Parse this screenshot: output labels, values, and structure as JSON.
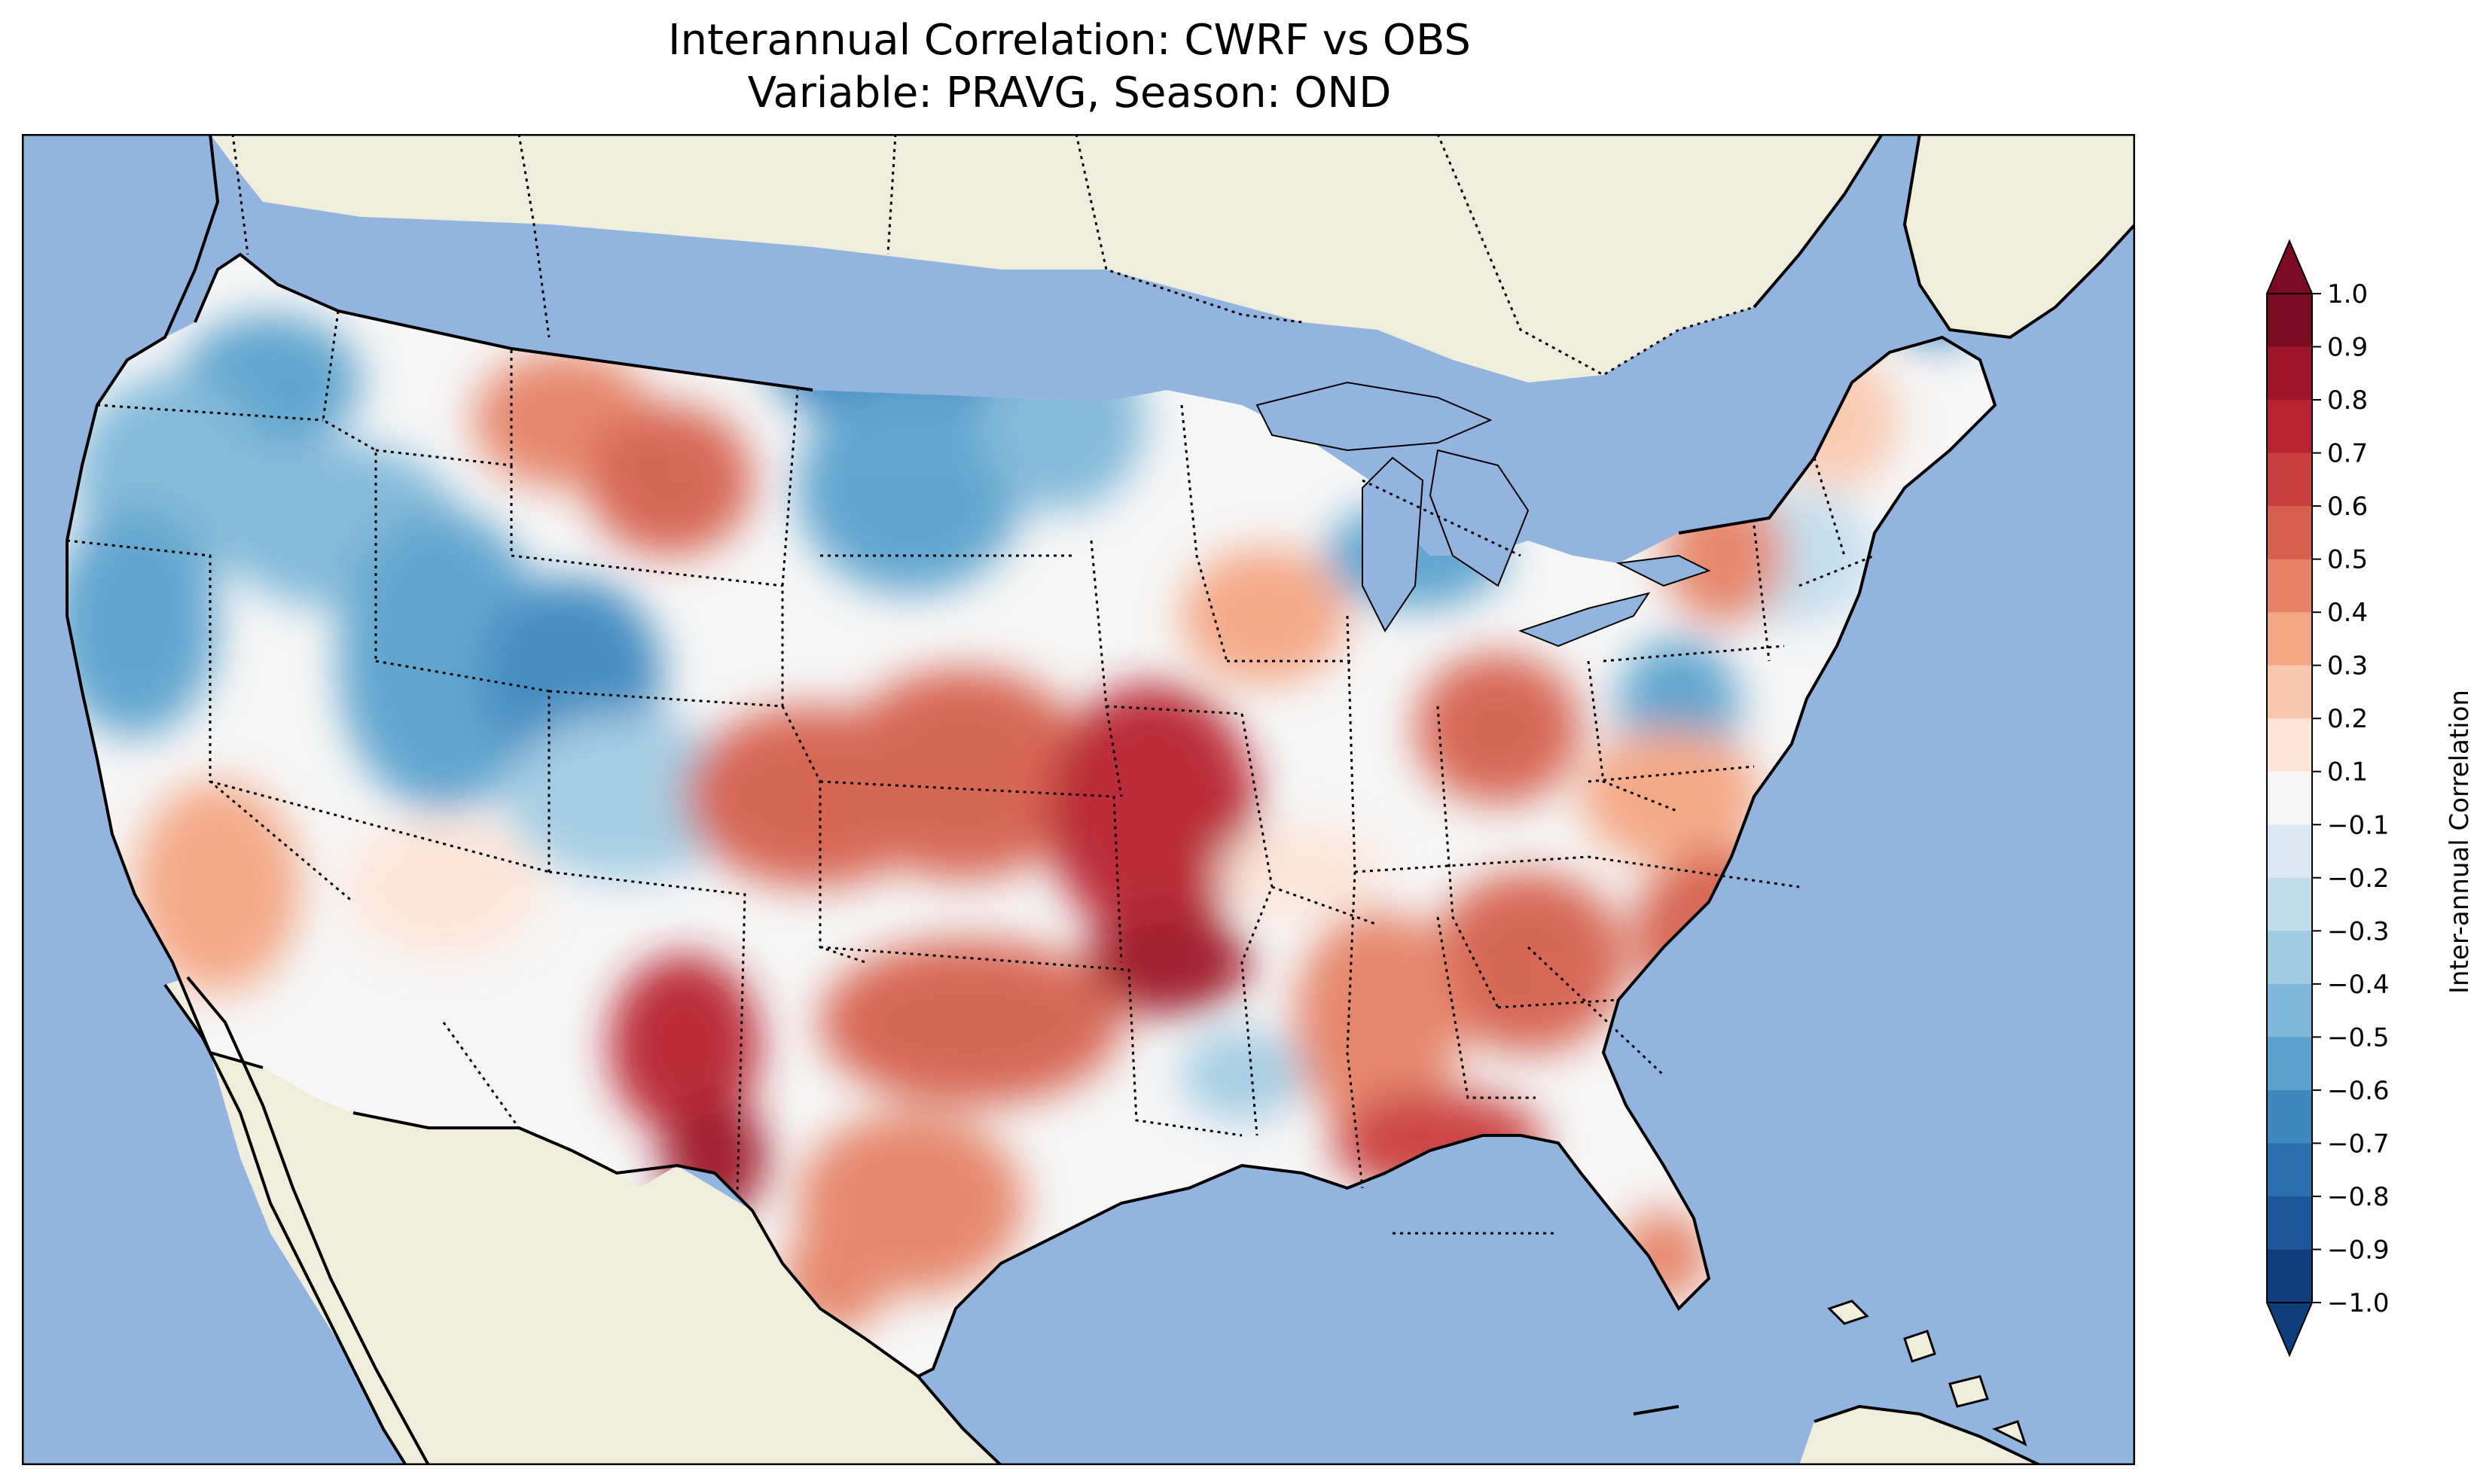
{
  "title": {
    "line1": "Interannual Correlation: CWRF vs OBS",
    "line2": "Variable: PRAVG, Season: OND"
  },
  "map": {
    "region": "Contiguous United States",
    "ocean_color": "#94b4e0",
    "land_color": "#efeedc",
    "features": [
      "coastlines",
      "state-borders",
      "country-borders",
      "great-lakes"
    ],
    "field": "correlation-contours"
  },
  "colorbar": {
    "label": "Inter-annual Correlation",
    "ticks": [
      "1.0",
      "0.9",
      "0.8",
      "0.7",
      "0.6",
      "0.5",
      "0.4",
      "0.3",
      "0.2",
      "0.1",
      "−0.1",
      "−0.2",
      "−0.3",
      "−0.4",
      "−0.5",
      "−0.6",
      "−0.7",
      "−0.8",
      "−0.9",
      "−1.0"
    ],
    "colors": [
      "#7b0a23",
      "#9e1428",
      "#b8212f",
      "#ca3e3e",
      "#d6604d",
      "#e58266",
      "#f4a582",
      "#f9c7ad",
      "#fde4d6",
      "#f6f6f6",
      "#dce9f2",
      "#c1ddec",
      "#a0cbe2",
      "#7eb7d9",
      "#5aa1cd",
      "#3e88bf",
      "#2b6fb0",
      "#1d569a",
      "#103e7d"
    ],
    "extend": "both"
  }
}
